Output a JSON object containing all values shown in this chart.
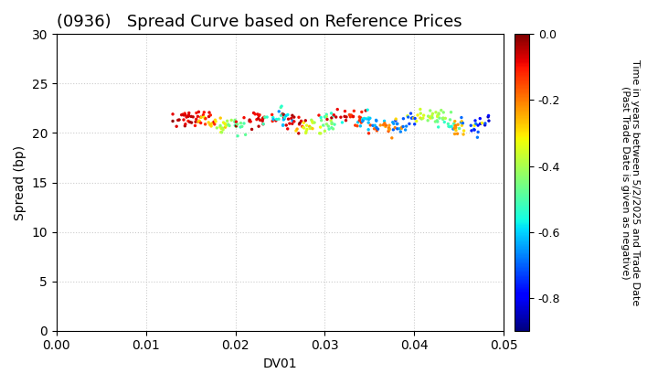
{
  "title": "(0936)   Spread Curve based on Reference Prices",
  "xlabel": "DV01",
  "ylabel": "Spread (bp)",
  "colorbar_label": "Time in years between 5/2/2025 and Trade Date\n(Past Trade Date is given as negative)",
  "xlim": [
    0.0,
    0.05
  ],
  "ylim": [
    0,
    30
  ],
  "xticks": [
    0.0,
    0.01,
    0.02,
    0.03,
    0.04,
    0.05
  ],
  "yticks": [
    0,
    5,
    10,
    15,
    20,
    25,
    30
  ],
  "cmap": "jet",
  "clim_min": -0.9,
  "clim_max": 0.0,
  "cticks": [
    0.0,
    -0.2,
    -0.4,
    -0.6,
    -0.8
  ],
  "marker_size": 6,
  "background_color": "#ffffff",
  "grid_color": "#cccccc",
  "title_fontsize": 13,
  "axis_fontsize": 10,
  "tick_fontsize": 10,
  "colorbar_label_fontsize": 8
}
